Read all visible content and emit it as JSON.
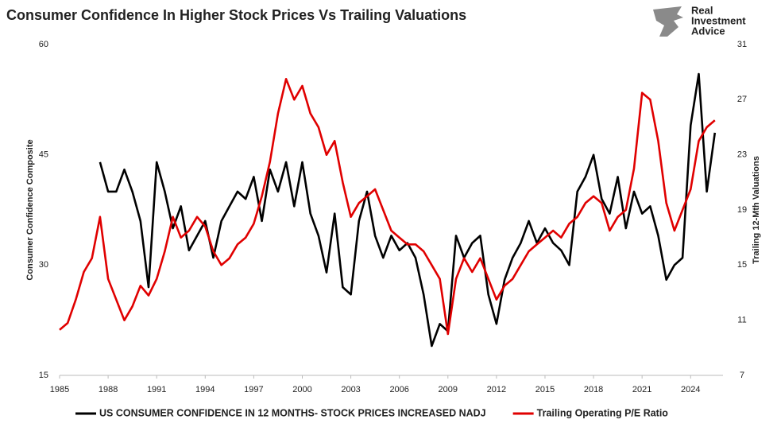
{
  "chart_data": {
    "type": "line",
    "title": "Consumer Confidence In Higher Stock Prices Vs Trailing Valuations",
    "y_label": "Consumer Confidence Composite",
    "y2_label": "Trailing 12-Mth Valuations",
    "x": [
      1985.0,
      1985.5,
      1986.0,
      1986.5,
      1987.0,
      1987.5,
      1988.0,
      1988.5,
      1989.0,
      1989.5,
      1990.0,
      1990.5,
      1991.0,
      1991.5,
      1992.0,
      1992.5,
      1993.0,
      1993.5,
      1994.0,
      1994.5,
      1995.0,
      1995.5,
      1996.0,
      1996.5,
      1997.0,
      1997.5,
      1998.0,
      1998.5,
      1999.0,
      1999.5,
      2000.0,
      2000.5,
      2001.0,
      2001.5,
      2002.0,
      2002.5,
      2003.0,
      2003.5,
      2004.0,
      2004.5,
      2005.0,
      2005.5,
      2006.0,
      2006.5,
      2007.0,
      2007.5,
      2008.0,
      2008.5,
      2009.0,
      2009.5,
      2010.0,
      2010.5,
      2011.0,
      2011.5,
      2012.0,
      2012.5,
      2013.0,
      2013.5,
      2014.0,
      2014.5,
      2015.0,
      2015.5,
      2016.0,
      2016.5,
      2017.0,
      2017.5,
      2018.0,
      2018.5,
      2019.0,
      2019.5,
      2020.0,
      2020.5,
      2021.0,
      2021.5,
      2022.0,
      2022.5,
      2023.0,
      2023.5,
      2024.0,
      2024.5,
      2025.0,
      2025.5
    ],
    "series": [
      {
        "name": "US CONSUMER CONFIDENCE IN 12 MONTHS- STOCK PRICES INCREASED NADJ",
        "color": "#000000",
        "values": [
          null,
          null,
          null,
          null,
          null,
          44,
          40,
          40,
          43,
          40,
          36,
          27,
          44,
          40,
          35,
          38,
          32,
          34,
          36,
          31,
          36,
          38,
          40,
          39,
          42,
          36,
          43,
          40,
          44,
          38,
          44,
          37,
          34,
          29,
          37,
          27,
          26,
          36,
          40,
          34,
          31,
          34,
          32,
          33,
          31,
          26,
          19,
          22,
          21,
          34,
          31,
          33,
          34,
          26,
          22,
          28,
          31,
          33,
          36,
          33,
          35,
          33,
          32,
          30,
          40,
          42,
          45,
          39,
          37,
          42,
          35,
          40,
          37,
          38,
          34,
          28,
          30,
          31,
          49,
          56,
          40,
          48
        ]
      },
      {
        "name": "Trailing Operating P/E Ratio",
        "color": "#e00000",
        "axis": "y2",
        "values": [
          10.3,
          10.8,
          12.5,
          14.5,
          15.5,
          18.5,
          14,
          12.5,
          11,
          12,
          13.5,
          12.8,
          14,
          16,
          18.5,
          17,
          17.5,
          18.5,
          17.8,
          16,
          15,
          15.5,
          16.5,
          17,
          18,
          20,
          22.5,
          26,
          28.5,
          27,
          28,
          26,
          25,
          23,
          24,
          21,
          18.5,
          19.5,
          20,
          20.5,
          19,
          17.5,
          17,
          16.5,
          16.5,
          16,
          15,
          14,
          10,
          14,
          15.5,
          14.5,
          15.5,
          14,
          12.5,
          13.5,
          14,
          15,
          16,
          16.5,
          17,
          17.5,
          17,
          18,
          18.5,
          19.5,
          20,
          19.5,
          17.5,
          18.5,
          19,
          22,
          27.5,
          27,
          24,
          19.5,
          17.5,
          19,
          20.5,
          24,
          25,
          25.5
        ]
      }
    ],
    "xlim": [
      1985,
      2026
    ],
    "xticks": [
      1985,
      1988,
      1991,
      1994,
      1997,
      2000,
      2003,
      2006,
      2009,
      2012,
      2015,
      2018,
      2021,
      2024
    ],
    "ylim": [
      15,
      60
    ],
    "yticks": [
      15,
      30,
      45,
      60
    ],
    "y2lim": [
      7,
      31
    ],
    "y2ticks": [
      7,
      11,
      15,
      19,
      23,
      27,
      31
    ],
    "grid": false,
    "legend": "bottom"
  },
  "logo": {
    "lines": [
      "Real",
      "Investment",
      "Advice"
    ]
  }
}
